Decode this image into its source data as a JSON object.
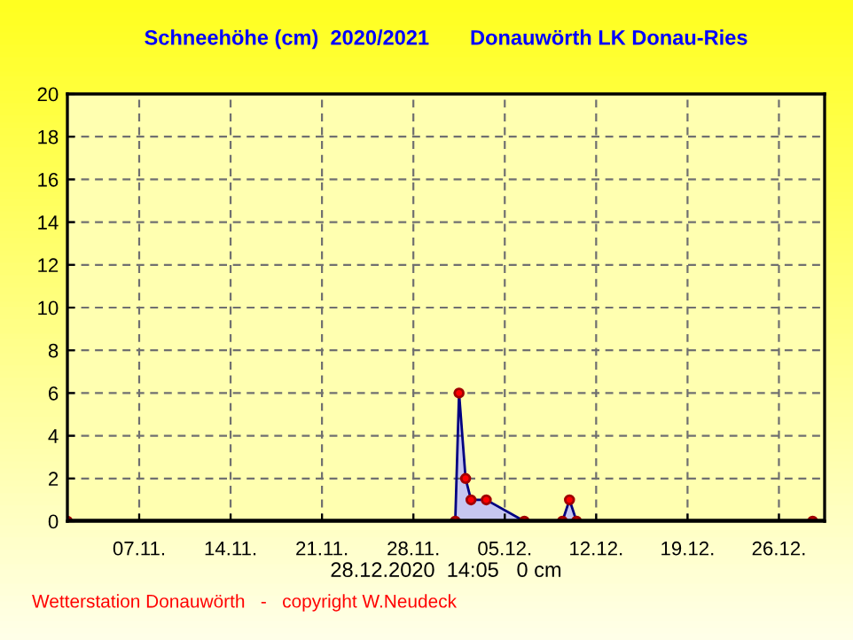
{
  "chart_data": {
    "type": "area",
    "title": "Schneehöhe (cm)  2020/2021       Donauwörth LK Donau-Ries",
    "xlabel": "28.12.2020  14:05   0 cm",
    "annotations": [
      "Wetterstation Donauwörth   -   copyright W.Neudeck"
    ],
    "x": [
      "2020-11-01T12:00",
      "2020-12-01T05:00",
      "2020-12-01T12:00",
      "2020-12-02T00:00",
      "2020-12-02T10:00",
      "2020-12-03T14:00",
      "2020-12-06T12:00",
      "2020-12-09T10:00",
      "2020-12-09T23:00",
      "2020-12-10T12:00",
      "2020-12-28T14:00"
    ],
    "series": [
      {
        "color": "#000080",
        "values": [
          0,
          0,
          6,
          2,
          1,
          1,
          0,
          0,
          1,
          0,
          0
        ]
      }
    ],
    "marker": "circle",
    "line_style": "solid",
    "grid": true,
    "xlim": [
      "2020-11-01T12:00",
      "2020-12-29T12:00"
    ],
    "xticks": [
      {
        "value": "2020-11-07",
        "label": "07.11."
      },
      {
        "value": "2020-11-14",
        "label": "14.11."
      },
      {
        "value": "2020-11-21",
        "label": "21.11."
      },
      {
        "value": "2020-11-28",
        "label": "28.11."
      },
      {
        "value": "2020-12-05",
        "label": "05.12."
      },
      {
        "value": "2020-12-12",
        "label": "12.12."
      },
      {
        "value": "2020-12-19",
        "label": "19.12."
      },
      {
        "value": "2020-12-26",
        "label": "26.12."
      }
    ],
    "ylim": [
      0,
      20
    ],
    "yticks": [
      0,
      2,
      4,
      6,
      8,
      10,
      12,
      14,
      16,
      18,
      20
    ]
  }
}
